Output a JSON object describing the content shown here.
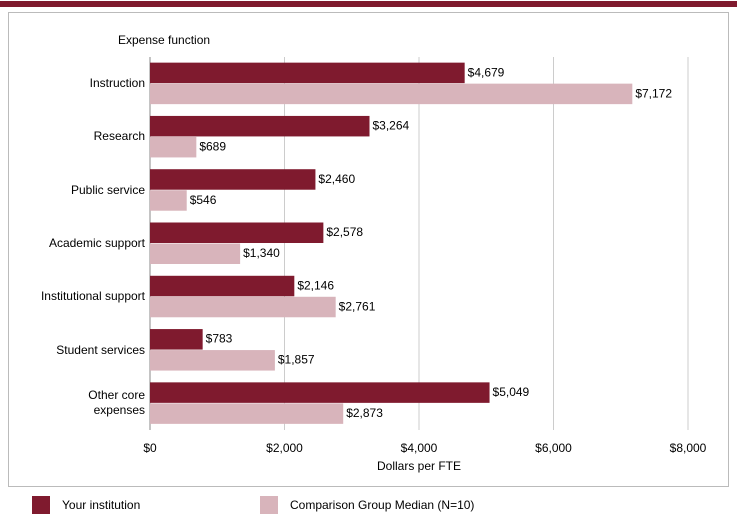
{
  "chart_data": {
    "type": "bar",
    "orientation": "horizontal",
    "title": "Expense function",
    "x_label": "Dollars per FTE",
    "categories": [
      "Instruction",
      "Research",
      "Public service",
      "Academic support",
      "Institutional support",
      "Student services",
      "Other core\nexpenses"
    ],
    "series": [
      {
        "name": "Your institution",
        "color": "#7f1a2e",
        "values": [
          4679,
          3264,
          2460,
          2578,
          2146,
          783,
          5049
        ],
        "value_labels": [
          "$4,679",
          "$3,264",
          "$2,460",
          "$2,578",
          "$2,146",
          "$783",
          "$5,049"
        ]
      },
      {
        "name": "Comparison Group Median (N=10)",
        "color": "#d8b4bb",
        "values": [
          7172,
          689,
          546,
          1340,
          2761,
          1857,
          2873
        ],
        "value_labels": [
          "$7,172",
          "$689",
          "$546",
          "$1,340",
          "$2,761",
          "$1,857",
          "$2,873"
        ]
      }
    ],
    "xlim": [
      0,
      8000
    ],
    "xticks": [
      {
        "value": 0,
        "label": "$0"
      },
      {
        "value": 2000,
        "label": "$2,000"
      },
      {
        "value": 4000,
        "label": "$4,000"
      },
      {
        "value": 6000,
        "label": "$6,000"
      },
      {
        "value": 8000,
        "label": "$8,000"
      }
    ],
    "grid": true
  }
}
